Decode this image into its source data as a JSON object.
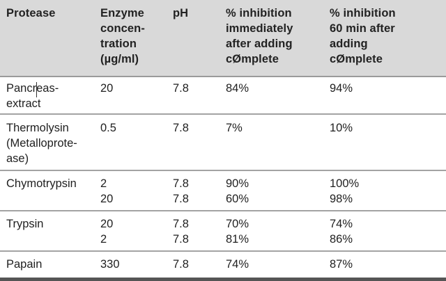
{
  "table": {
    "headers": [
      "Protease",
      "Enzyme\nconcen-\ntration\n(µg/ml)",
      "pH",
      "% inhibition\nimmediately\nafter adding\ncØmplete",
      "% inhibition\n60 min after\nadding\ncØmplete"
    ],
    "rows": [
      {
        "protease": "Pancreas-\nextract",
        "concentration": "20",
        "ph": "7.8",
        "inhibition_immediate": "84%",
        "inhibition_60min": "94%"
      },
      {
        "protease": "Thermolysin\n(Metalloprote-\nase)",
        "concentration": "0.5",
        "ph": "7.8",
        "inhibition_immediate": "7%",
        "inhibition_60min": "10%"
      },
      {
        "protease": "Chymotrypsin",
        "concentration": "2\n20",
        "ph": "7.8\n7.8",
        "inhibition_immediate": "90%\n60%",
        "inhibition_60min": "100%\n98%"
      },
      {
        "protease": "Trypsin",
        "concentration": "20\n2",
        "ph": "7.8\n7.8",
        "inhibition_immediate": "70%\n81%",
        "inhibition_60min": "74%\n86%"
      },
      {
        "protease": "Papain",
        "concentration": "330",
        "ph": "7.8",
        "inhibition_immediate": "74%",
        "inhibition_60min": "87%"
      }
    ]
  }
}
